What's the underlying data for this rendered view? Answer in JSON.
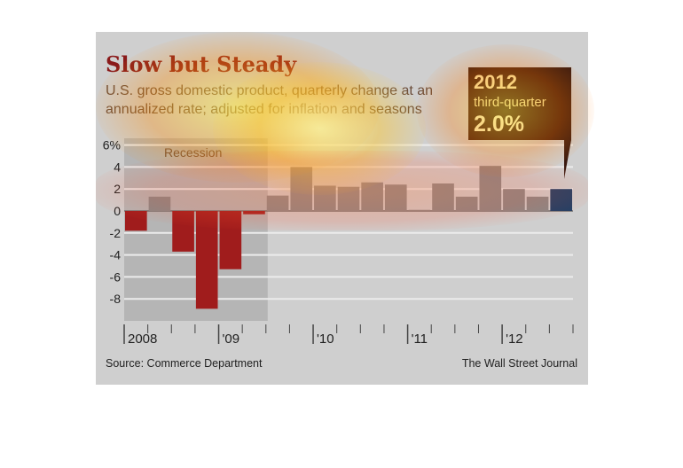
{
  "header": {
    "title": "Slow but Steady",
    "subtitle": "U.S. gross domestic product, quarterly change at an annualized rate; adjusted for inflation and seasons"
  },
  "callout": {
    "year": "2012",
    "label": "third-quarter",
    "value": "2.0%"
  },
  "footer": {
    "source": "Source: Commerce Department",
    "credit": "The Wall Street Journal"
  },
  "colors": {
    "negative_bar": "#a01c1c",
    "positive_bar": "#888888",
    "highlight_bar": "#1f3f66",
    "recession_shade": "#b5b5b5",
    "card_background": "#cfcfcf"
  },
  "chart_data": {
    "type": "bar",
    "categories": [
      "2008 Q1",
      "2008 Q2",
      "2008 Q3",
      "2008 Q4",
      "2009 Q1",
      "2009 Q2",
      "2009 Q3",
      "2009 Q4",
      "2010 Q1",
      "2010 Q2",
      "2010 Q3",
      "2010 Q4",
      "2011 Q1",
      "2011 Q2",
      "2011 Q3",
      "2011 Q4",
      "2012 Q1",
      "2012 Q2",
      "2012 Q3"
    ],
    "values": [
      -1.8,
      1.3,
      -3.7,
      -8.9,
      -5.3,
      -0.3,
      1.4,
      4.0,
      2.3,
      2.2,
      2.6,
      2.4,
      0.1,
      2.5,
      1.3,
      4.1,
      2.0,
      1.3,
      2.0
    ],
    "highlight_index": 18,
    "recession": {
      "label": "Recession",
      "start_index": 0,
      "end_index": 5
    },
    "ylim": [
      -10,
      6
    ],
    "yticks": [
      6,
      4,
      2,
      0,
      -2,
      -4,
      -6,
      -8
    ],
    "ytick_labels": [
      "6%",
      "4",
      "2",
      "0",
      "-2",
      "-4",
      "-6",
      "-8"
    ],
    "xtick_labels": [
      {
        "label": "2008",
        "index": 0
      },
      {
        "label": "'09",
        "index": 4
      },
      {
        "label": "'10",
        "index": 8
      },
      {
        "label": "'11",
        "index": 12
      },
      {
        "label": "'12",
        "index": 16
      }
    ],
    "grid": true
  }
}
